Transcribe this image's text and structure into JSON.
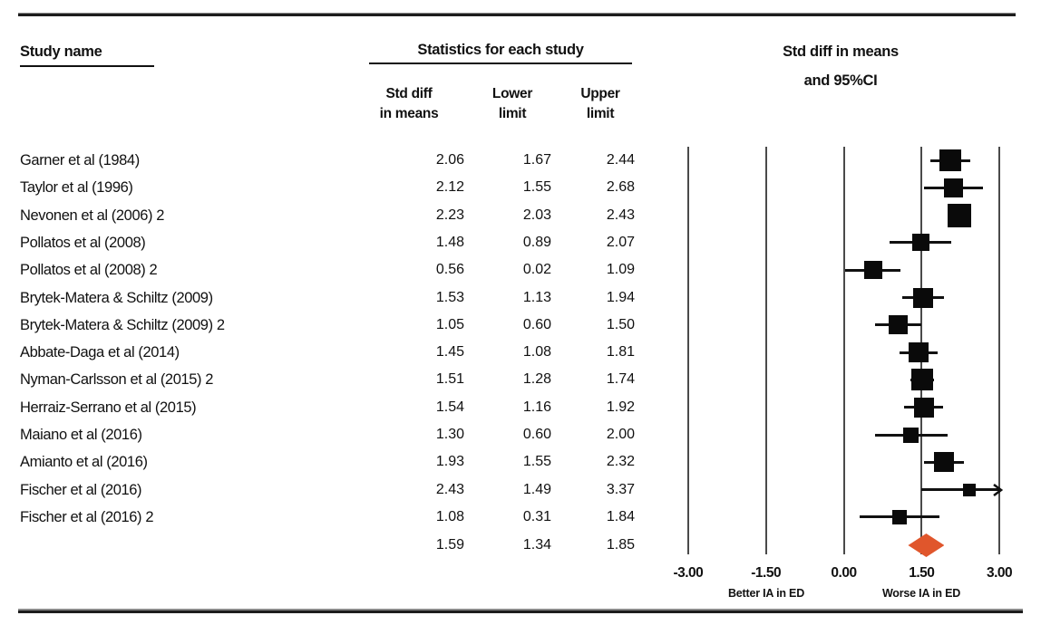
{
  "header": {
    "study_col": "Study name",
    "stats_section": "Statistics for each study",
    "col_std_line1": "Std diff",
    "col_std_line2": "in means",
    "col_lower_line1": "Lower",
    "col_lower_line2": "limit",
    "col_upper_line1": "Upper",
    "col_upper_line2": "limit",
    "plot_line1": "Std diff in means",
    "plot_line2": "and 95%CI"
  },
  "chart_data": {
    "type": "forest",
    "title": "Std diff in means and 95%CI",
    "effect_measure": "Std diff in means",
    "x_axis": {
      "range": [
        -3.0,
        3.0
      ],
      "ticks": [
        -3.0,
        -1.5,
        0.0,
        1.5,
        3.0
      ],
      "tick_labels": [
        "-3.00",
        "-1.50",
        "0.00",
        "1.50",
        "3.00"
      ],
      "left_label": "Better IA in ED",
      "right_label": "Worse IA in ED"
    },
    "studies": [
      {
        "name": "Garner et al (1984)",
        "std_diff": 2.06,
        "lower": 1.67,
        "upper": 2.44,
        "marker_size": 24
      },
      {
        "name": "Taylor et al (1996)",
        "std_diff": 2.12,
        "lower": 1.55,
        "upper": 2.68,
        "marker_size": 21
      },
      {
        "name": "Nevonen et al (2006) 2",
        "std_diff": 2.23,
        "lower": 2.03,
        "upper": 2.43,
        "marker_size": 26
      },
      {
        "name": "Pollatos et al (2008)",
        "std_diff": 1.48,
        "lower": 0.89,
        "upper": 2.07,
        "marker_size": 19
      },
      {
        "name": "Pollatos et al (2008) 2",
        "std_diff": 0.56,
        "lower": 0.02,
        "upper": 1.09,
        "marker_size": 20
      },
      {
        "name": "Brytek-Matera & Schiltz (2009)",
        "std_diff": 1.53,
        "lower": 1.13,
        "upper": 1.94,
        "marker_size": 22
      },
      {
        "name": "Brytek-Matera & Schiltz (2009) 2",
        "std_diff": 1.05,
        "lower": 0.6,
        "upper": 1.5,
        "marker_size": 21
      },
      {
        "name": "Abbate-Daga et al (2014)",
        "std_diff": 1.45,
        "lower": 1.08,
        "upper": 1.81,
        "marker_size": 22
      },
      {
        "name": "Nyman-Carlsson et al (2015) 2",
        "std_diff": 1.51,
        "lower": 1.28,
        "upper": 1.74,
        "marker_size": 24
      },
      {
        "name": "Herraiz-Serrano et al (2015)",
        "std_diff": 1.54,
        "lower": 1.16,
        "upper": 1.92,
        "marker_size": 22
      },
      {
        "name": "Maiano et al (2016)",
        "std_diff": 1.3,
        "lower": 0.6,
        "upper": 2.0,
        "marker_size": 17
      },
      {
        "name": "Amianto et al (2016)",
        "std_diff": 1.93,
        "lower": 1.55,
        "upper": 2.32,
        "marker_size": 22
      },
      {
        "name": "Fischer et al (2016)",
        "std_diff": 2.43,
        "lower": 1.49,
        "upper": 3.37,
        "marker_size": 14
      },
      {
        "name": "Fischer et al (2016) 2",
        "std_diff": 1.08,
        "lower": 0.31,
        "upper": 1.84,
        "marker_size": 16
      }
    ],
    "summary": {
      "std_diff": 1.59,
      "lower": 1.34,
      "upper": 1.85
    },
    "colors": {
      "marker": "#0a0a0a",
      "ci_line": "#111111",
      "gridline": "#4a4a4a",
      "diamond": "#e0562c"
    }
  }
}
